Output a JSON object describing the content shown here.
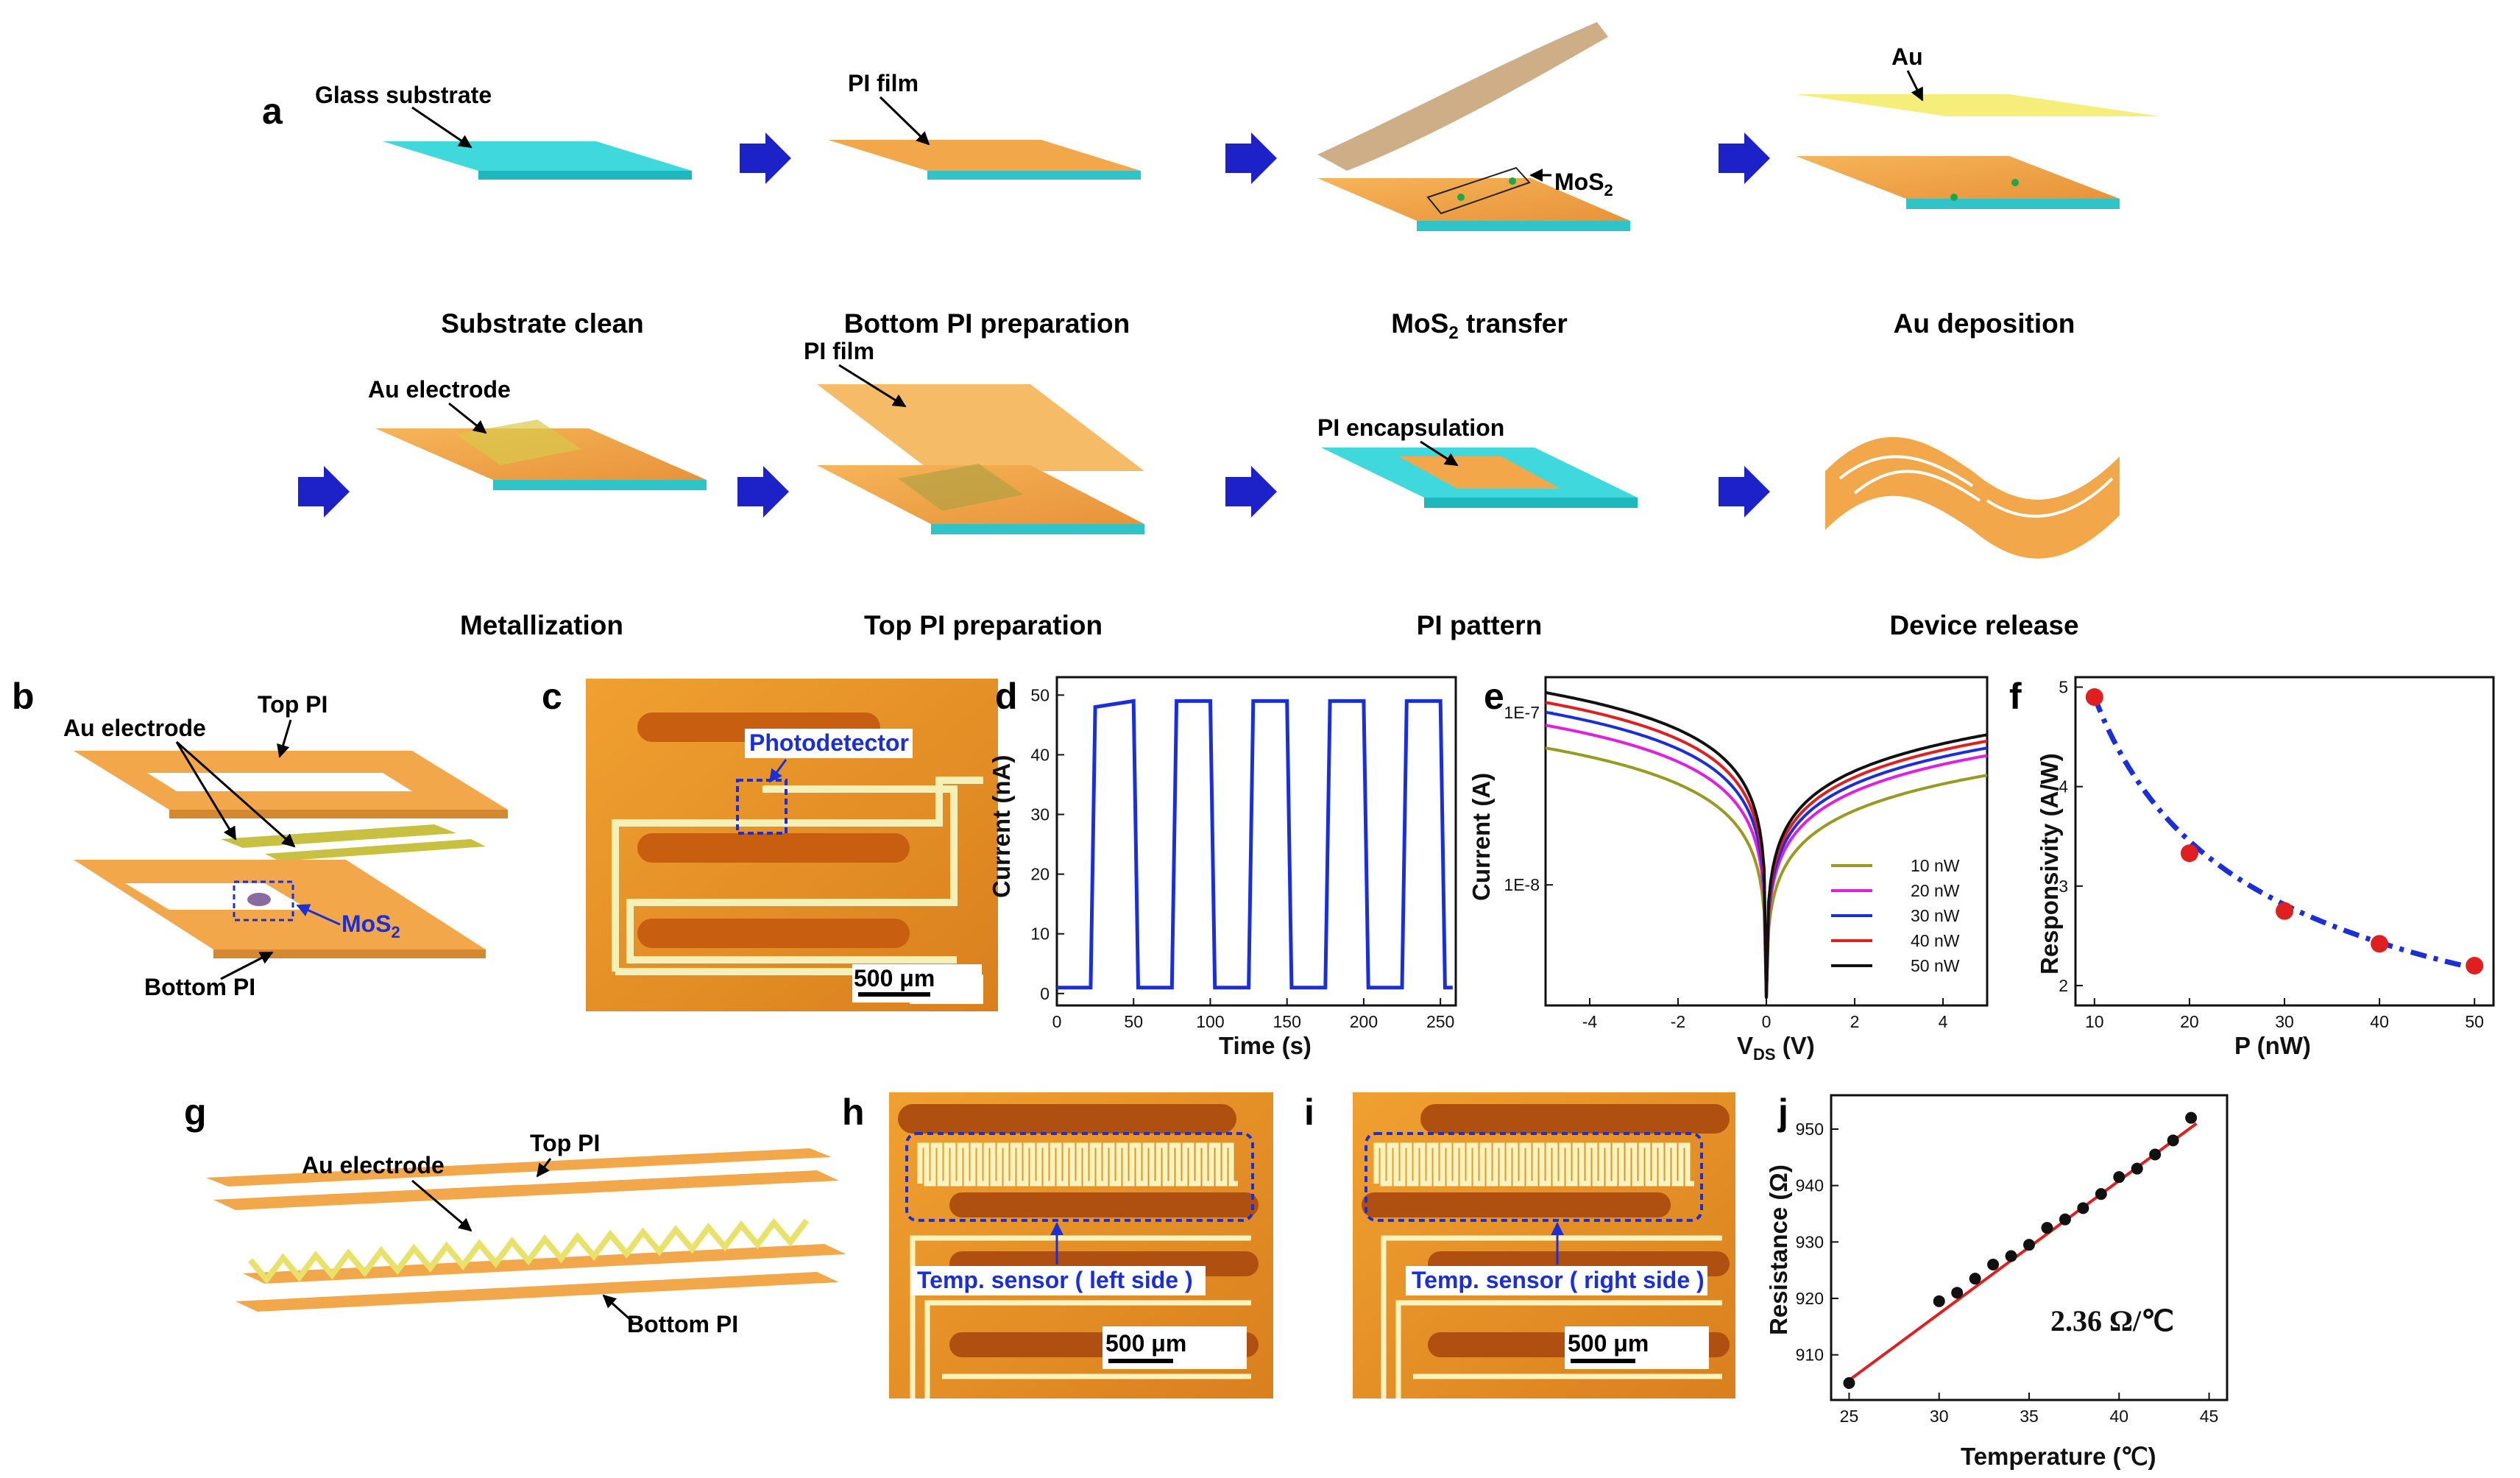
{
  "panels": {
    "a": "a",
    "b": "b",
    "c": "c",
    "d": "d",
    "e": "e",
    "f": "f",
    "g": "g",
    "h": "h",
    "i": "i",
    "j": "j"
  },
  "steps": {
    "s1": "Substrate clean",
    "s2": "Bottom PI preparation",
    "s3_main": "MoS",
    "s3_sub": "2",
    "s3_rest": " transfer",
    "s4": "Au deposition",
    "s5": "Metallization",
    "s6": "Top PI preparation",
    "s7": "PI pattern",
    "s8": "Device release"
  },
  "callouts": {
    "glass": "Glass substrate",
    "pi_film": "PI film",
    "mos2": "MoS",
    "mos2_sub": "2",
    "au": "Au",
    "au_electrode": "Au electrode",
    "pi_film2": "PI film",
    "pi_encap": "PI encapsulation"
  },
  "panel_b": {
    "au_electrode": "Au electrode",
    "top_pi": "Top PI",
    "mos2": "MoS",
    "mos2_sub": "2",
    "bottom_pi": "Bottom PI"
  },
  "panel_c": {
    "photodetector": "Photodetector",
    "scale": "500 μm"
  },
  "panel_g": {
    "top_pi": "Top PI",
    "au_electrode": "Au electrode",
    "bottom_pi": "Bottom PI"
  },
  "panel_h": {
    "label": "Temp. sensor ( left side )",
    "scale": "500 μm"
  },
  "panel_i": {
    "label": "Temp. sensor ( right side )",
    "scale": "500 μm"
  },
  "colors": {
    "cyan": "#3fd8dc",
    "orange": "#f2a84a",
    "gold": "#e8e26a",
    "arrow": "#1c22c8",
    "blue_line": "#1a2fd8",
    "red_dot": "#e02020"
  },
  "chart_data": [
    {
      "panel": "d",
      "type": "line",
      "xlabel": "Time (s)",
      "ylabel": "Current (nA)",
      "xlim": [
        0,
        260
      ],
      "ylim": [
        -2,
        53
      ],
      "xticks": [
        "0",
        "50",
        "100",
        "150",
        "200",
        "250"
      ],
      "yticks": [
        "0",
        "10",
        "20",
        "30",
        "40",
        "50"
      ],
      "series": [
        {
          "x": [
            0,
            22,
            25,
            50,
            53,
            75,
            78,
            100,
            103,
            125,
            128,
            150,
            153,
            175,
            178,
            200,
            203,
            225,
            228,
            250,
            253,
            258
          ],
          "y": [
            1,
            1,
            48,
            49,
            1,
            1,
            49,
            49,
            1,
            1,
            49,
            49,
            1,
            1,
            49,
            49,
            1,
            1,
            49,
            49,
            1,
            1
          ]
        }
      ]
    },
    {
      "panel": "e",
      "type": "line",
      "xlabel": "V",
      "xlabel_sub": "DS",
      "xlabel_rest": " (V)",
      "ylabel": "Current (A)",
      "xlim": [
        -5,
        5
      ],
      "log_y": true,
      "ylim": [
        2e-09,
        1.6e-07
      ],
      "xticks": [
        "-4",
        "-2",
        "0",
        "2",
        "4"
      ],
      "yticks": [
        "1E-7",
        "1E-8"
      ],
      "series": [
        {
          "name": "10 nW",
          "color": "#9a9a20",
          "at_neg5": 6e-08,
          "at_pos5": 4.1e-08
        },
        {
          "name": "20 nW",
          "color": "#e020e0",
          "at_neg5": 8.2e-08,
          "at_pos5": 5.4e-08
        },
        {
          "name": "30 nW",
          "color": "#1a2fd8",
          "at_neg5": 9.8e-08,
          "at_pos5": 6e-08
        },
        {
          "name": "40 nW",
          "color": "#e02020",
          "at_neg5": 1.12e-07,
          "at_pos5": 6.6e-08
        },
        {
          "name": "50 nW",
          "color": "#111111",
          "at_neg5": 1.28e-07,
          "at_pos5": 7.2e-08
        }
      ]
    },
    {
      "panel": "f",
      "type": "scatter",
      "xlabel": "P (nW)",
      "ylabel": "Responsivity (A/W)",
      "xlim": [
        8,
        52
      ],
      "ylim": [
        1.8,
        5.1
      ],
      "xticks": [
        "10",
        "20",
        "30",
        "40",
        "50"
      ],
      "yticks": [
        "2",
        "3",
        "4",
        "5"
      ],
      "x": [
        10,
        20,
        30,
        40,
        50
      ],
      "y": [
        4.9,
        3.33,
        2.75,
        2.42,
        2.2
      ]
    },
    {
      "panel": "j",
      "type": "scatter",
      "xlabel": "Temperature (℃)",
      "ylabel": "Resistance (Ω)",
      "annotation": "2.36 Ω/℃",
      "xlim": [
        24,
        46
      ],
      "ylim": [
        902,
        956
      ],
      "xticks": [
        "25",
        "30",
        "35",
        "40",
        "45"
      ],
      "yticks": [
        "910",
        "920",
        "930",
        "940",
        "950"
      ],
      "x": [
        25,
        30,
        31,
        32,
        33,
        34,
        35,
        36,
        37,
        38,
        39,
        40,
        41,
        42,
        43,
        44
      ],
      "y": [
        905,
        919.5,
        921,
        923.5,
        926,
        927.5,
        929.5,
        932.5,
        934,
        936,
        938.5,
        941.5,
        943,
        945.5,
        948,
        952
      ]
    }
  ]
}
